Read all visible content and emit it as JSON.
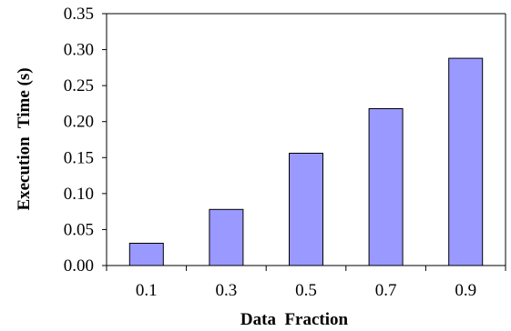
{
  "chart_data": {
    "type": "bar",
    "categories": [
      "0.1",
      "0.3",
      "0.5",
      "0.7",
      "0.9"
    ],
    "values": [
      0.031,
      0.078,
      0.156,
      0.218,
      0.288
    ],
    "title": "",
    "xlabel": "Data  Fraction",
    "ylabel": "Execution  Time (s)",
    "ylim": [
      0,
      0.35
    ],
    "yticks": [
      0.0,
      0.05,
      0.1,
      0.15,
      0.2,
      0.25,
      0.3,
      0.35
    ],
    "ytick_labels": [
      "0.00",
      "0.05",
      "0.10",
      "0.15",
      "0.20",
      "0.25",
      "0.30",
      "0.35"
    ],
    "grid": false,
    "legend": "none",
    "colors": {
      "bar_fill": "#9999ff",
      "bar_stroke": "#000000",
      "axis": "#000000"
    }
  }
}
